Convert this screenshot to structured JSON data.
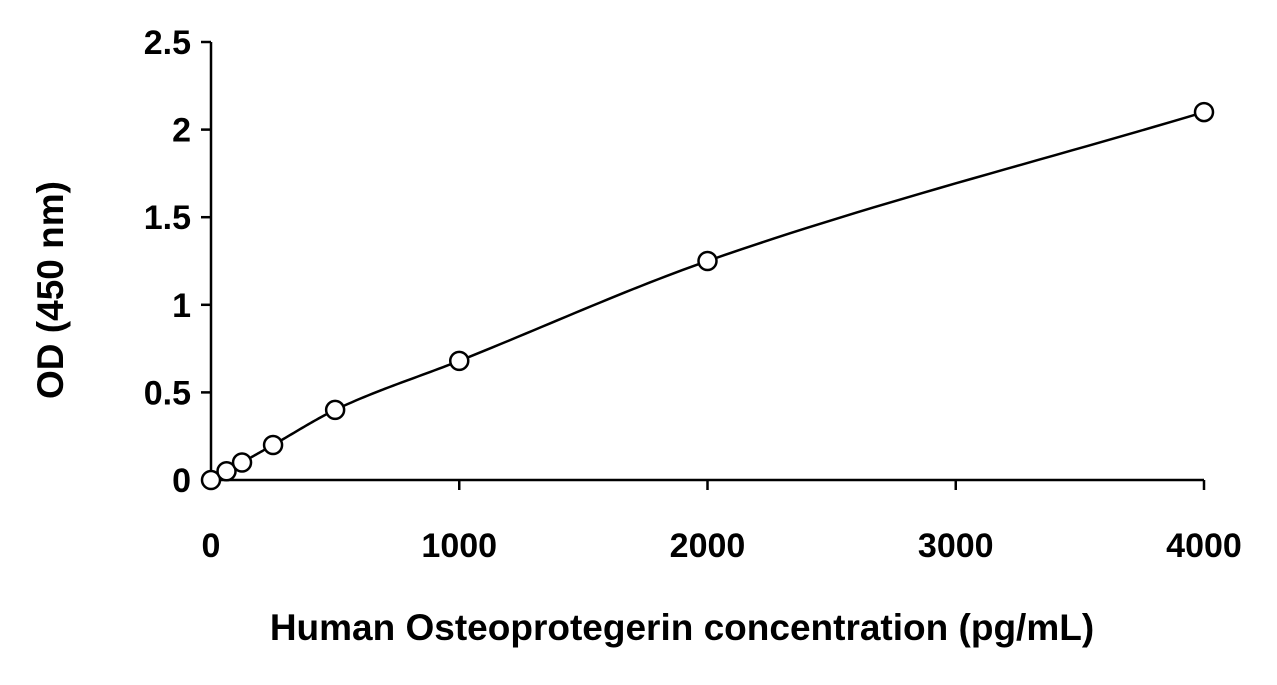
{
  "chart_data": {
    "type": "scatter",
    "title": "",
    "xlabel": "Human Osteoprotegerin concentration (pg/mL)",
    "ylabel": "OD (450 nm)",
    "xlim": [
      0,
      4000
    ],
    "ylim": [
      0,
      2.5
    ],
    "x_ticks": [
      "0",
      "1000",
      "2000",
      "3000",
      "4000"
    ],
    "y_ticks": [
      "0",
      "0.5",
      "1",
      "1.5",
      "2",
      "2.5"
    ],
    "grid": false,
    "legend": "none",
    "fit_curve": true,
    "series": [
      {
        "x": [
          0,
          62.5,
          125,
          250,
          500,
          1000,
          2000,
          4000
        ],
        "y": [
          0.0,
          0.05,
          0.1,
          0.2,
          0.4,
          0.68,
          1.25,
          2.1
        ]
      }
    ],
    "colors": {
      "marker_stroke": "#000000",
      "marker_fill": "#ffffff",
      "line": "#000000"
    }
  }
}
